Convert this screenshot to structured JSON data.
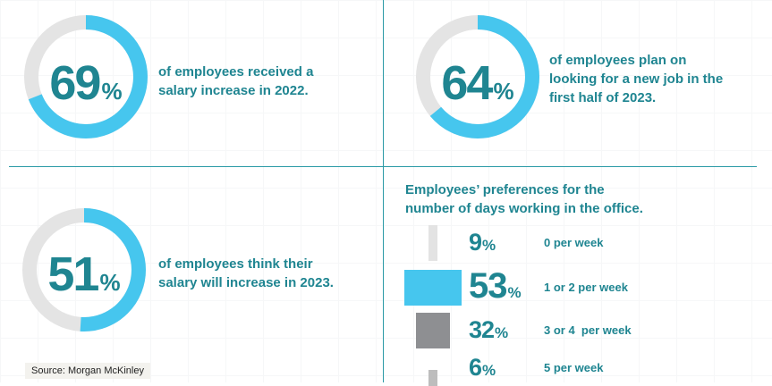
{
  "stats": [
    {
      "value": 69,
      "percent_sign": "%",
      "text_lines": [
        "of employees received a",
        "salary increase in 2022."
      ]
    },
    {
      "value": 64,
      "percent_sign": "%",
      "text_lines": [
        "of employees plan on",
        "looking for a new job in the",
        "first half of 2023."
      ]
    },
    {
      "value": 51,
      "percent_sign": "%",
      "text_lines": [
        "of employees think their",
        "salary will increase in 2023."
      ]
    }
  ],
  "preferences": {
    "title_lines": [
      "Employees’ preferences for the",
      "number of days working in the office."
    ]
  },
  "chart_data": {
    "type": "bar",
    "title": "Employees’ preferences for the number of days working in the office.",
    "categories": [
      "0 per week",
      "1 or 2 per week",
      "3 or 4  per week",
      "5 per week"
    ],
    "values": [
      9,
      53,
      32,
      6
    ],
    "percent_sign": "%",
    "colors": [
      "#e3e3e3",
      "#46c6ee",
      "#8e8f92",
      "#bdbdbd"
    ],
    "orientation": "horizontal-centered"
  },
  "colors": {
    "teal": "#1f8591",
    "ring_fill": "#46c6ee",
    "ring_track": "#e4e4e4",
    "divider": "#2b9aa6"
  },
  "source": "Source: Morgan McKinley"
}
